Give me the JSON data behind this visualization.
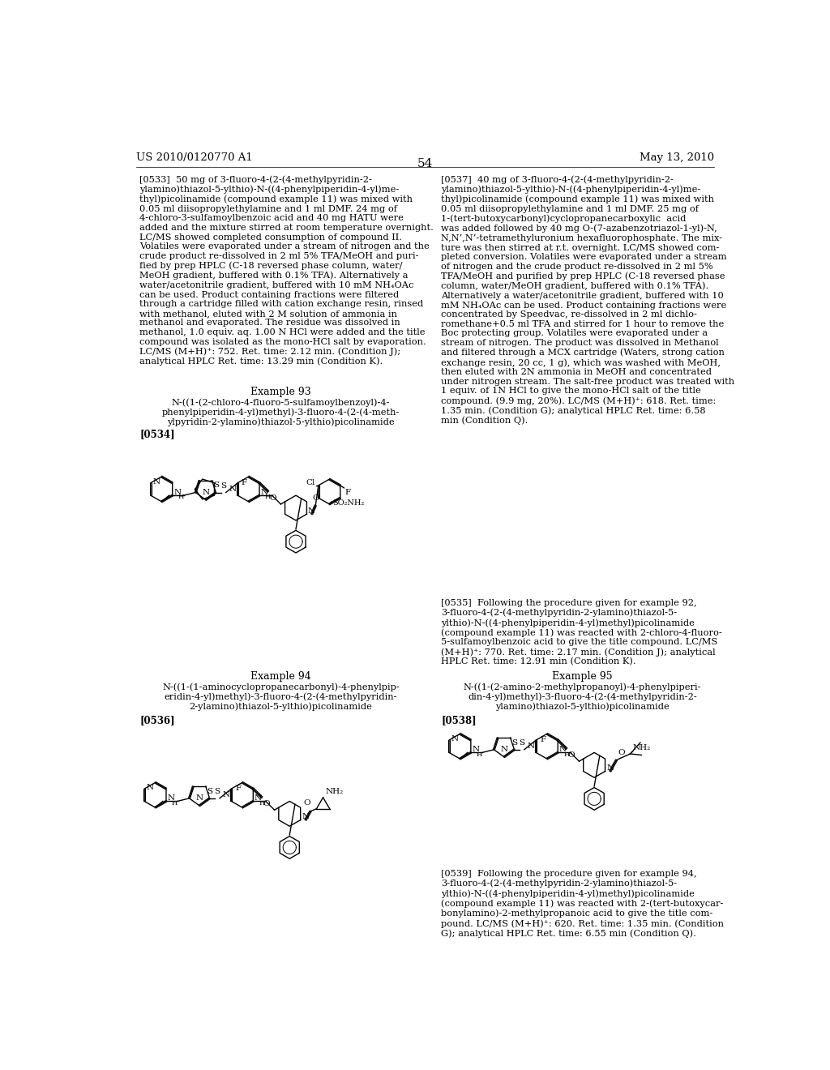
{
  "page_width": 10.24,
  "page_height": 13.2,
  "background_color": "#ffffff",
  "header_left": "US 2010/0120770 A1",
  "header_right": "May 13, 2010",
  "page_number": "54"
}
